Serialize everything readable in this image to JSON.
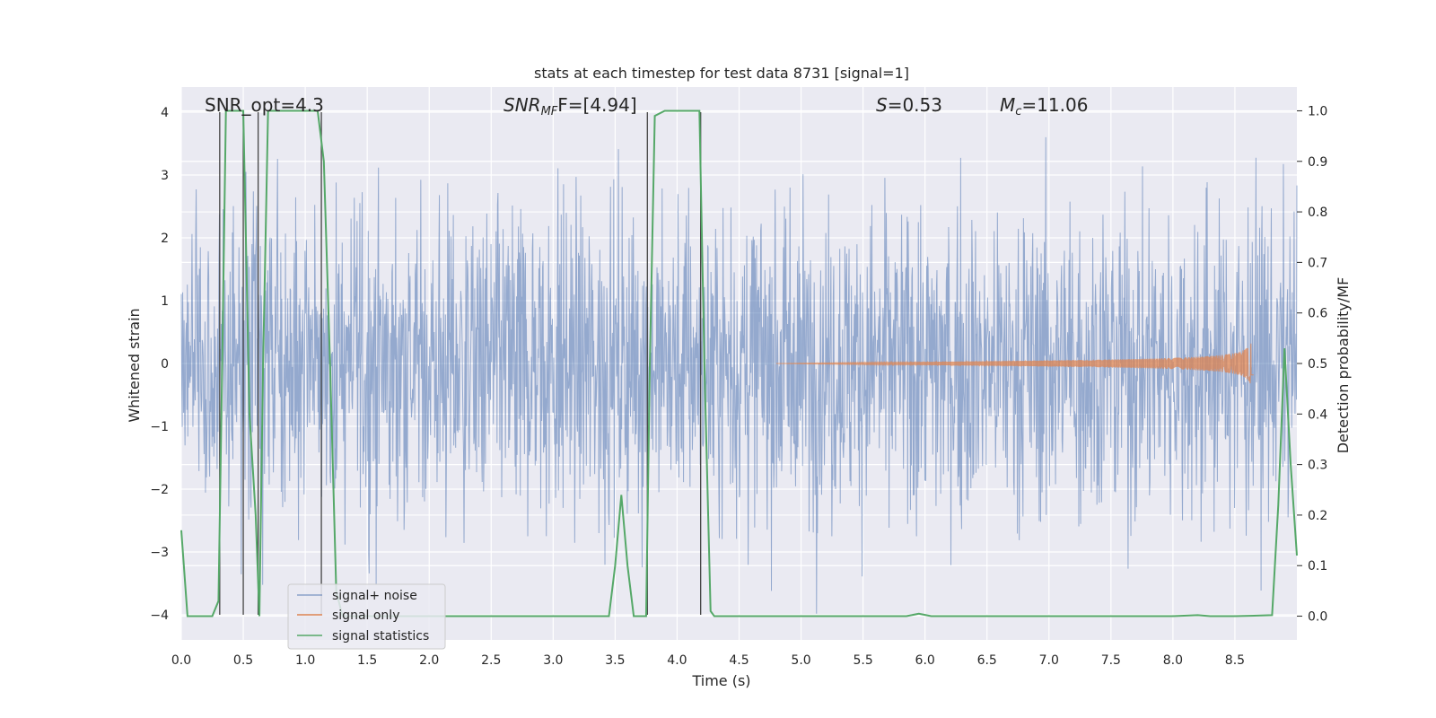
{
  "chart_data": {
    "type": "line",
    "title": "stats at each timestep for test data 8731 [signal=1]",
    "xlabel": "Time (s)",
    "ylabel": "Whitened strain",
    "y2label": "Detection probability/MF",
    "xlim": [
      0,
      9.0
    ],
    "ylim": [
      -4.4,
      4.4
    ],
    "y2lim": [
      -0.047,
      1.047
    ],
    "xticks": [
      "0.0",
      "0.5",
      "1.0",
      "1.5",
      "2.0",
      "2.5",
      "3.0",
      "3.5",
      "4.0",
      "4.5",
      "5.0",
      "5.5",
      "6.0",
      "6.5",
      "7.0",
      "7.5",
      "8.0",
      "8.5"
    ],
    "yticks": [
      "−4",
      "−3",
      "−2",
      "−1",
      "0",
      "1",
      "2",
      "3",
      "4"
    ],
    "y2ticks": [
      "0.0",
      "0.1",
      "0.2",
      "0.3",
      "0.4",
      "0.5",
      "0.6",
      "0.7",
      "0.8",
      "0.9",
      "1.0"
    ],
    "grid": true,
    "legend_position": "lower-left",
    "annotations": {
      "snr_opt": "SNR_opt=4.3",
      "snr_mf_base": "SNR",
      "snr_mf_sub": "MF",
      "snr_mf_rest": "F=[4.94]",
      "s_label": "S",
      "s_rest": "=0.53",
      "mc_base": "M",
      "mc_sub": "c",
      "mc_rest": "=11.06"
    },
    "series": [
      {
        "name": "signal+ noise",
        "color": "#4c72b0",
        "axis": "left",
        "noise_amplitude": 1.25
      },
      {
        "name": "signal only",
        "color": "#dd8452",
        "axis": "left",
        "chirp_start": 4.8,
        "chirp_end": 8.65,
        "chirp_peak": 0.65
      },
      {
        "name": "signal statistics",
        "color": "#55a868",
        "axis": "right",
        "x": [
          0.0,
          0.05,
          0.1,
          0.15,
          0.2,
          0.25,
          0.3,
          0.33,
          0.36,
          0.4,
          0.45,
          0.5,
          0.55,
          0.6,
          0.63,
          0.66,
          0.7,
          0.75,
          0.8,
          0.9,
          1.0,
          1.1,
          1.15,
          1.2,
          1.25,
          1.3,
          1.5,
          2.0,
          2.5,
          3.0,
          3.45,
          3.5,
          3.55,
          3.6,
          3.65,
          3.75,
          3.78,
          3.82,
          3.9,
          4.0,
          4.1,
          4.18,
          4.22,
          4.27,
          4.3,
          4.5,
          5.0,
          5.5,
          5.85,
          5.95,
          6.05,
          6.1,
          6.5,
          7.0,
          7.5,
          8.0,
          8.2,
          8.3,
          8.5,
          8.8,
          8.85,
          8.9,
          8.95,
          9.0
        ],
        "values": [
          0.17,
          0.0,
          0.0,
          0.0,
          0.0,
          0.0,
          0.03,
          0.5,
          1.0,
          1.0,
          1.0,
          1.0,
          0.4,
          0.2,
          0.0,
          0.5,
          1.0,
          1.0,
          1.0,
          1.0,
          1.0,
          1.0,
          0.9,
          0.5,
          0.05,
          0.0,
          0.0,
          0.0,
          0.0,
          0.0,
          0.0,
          0.1,
          0.24,
          0.1,
          0.0,
          0.0,
          0.5,
          0.99,
          1.0,
          1.0,
          1.0,
          1.0,
          0.5,
          0.01,
          0.0,
          0.0,
          0.0,
          0.0,
          0.0,
          0.005,
          0.0,
          0.0,
          0.0,
          0.0,
          0.0,
          0.0,
          0.002,
          0.0,
          0.0,
          0.002,
          0.22,
          0.53,
          0.3,
          0.12
        ]
      },
      {
        "name": "",
        "color": "#444444",
        "axis": "left",
        "type": "vlines",
        "x": [
          0.31,
          0.5,
          0.62,
          1.13,
          3.76,
          4.19
        ],
        "ymin": -4.0,
        "ymax": 4.0
      }
    ]
  }
}
